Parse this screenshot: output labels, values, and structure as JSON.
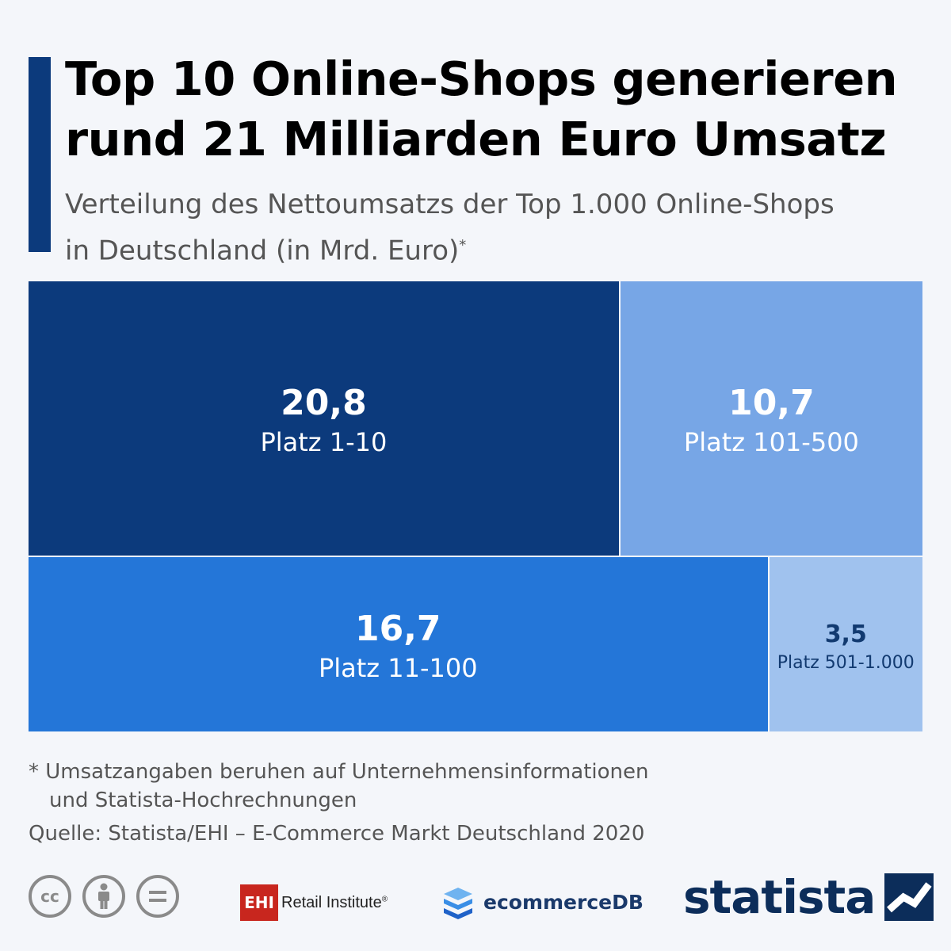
{
  "header": {
    "title_line1": "Top 10 Online-Shops generieren",
    "title_line2": "rund 21 Milliarden Euro Umsatz",
    "subtitle_line1": "Verteilung des Nettoumsatzs der Top 1.000 Online-Shops",
    "subtitle_line2": "in Deutschland (in Mrd. Euro)",
    "subtitle_mark": "*"
  },
  "chart_data": {
    "type": "treemap",
    "title": "Top 10 Online-Shops generieren rund 21 Milliarden Euro Umsatz",
    "unit": "Mrd. Euro",
    "rows": [
      {
        "items": [
          {
            "value": 20.8,
            "value_label": "20,8",
            "label": "Platz 1-10",
            "color": "#0c3a7c",
            "text_color": "#ffffff"
          },
          {
            "value": 10.7,
            "value_label": "10,7",
            "label": "Platz 101-500",
            "color": "#77a6e6",
            "text_color": "#ffffff"
          }
        ]
      },
      {
        "items": [
          {
            "value": 16.7,
            "value_label": "16,7",
            "label": "Platz 11-100",
            "color": "#2476d8",
            "text_color": "#ffffff"
          },
          {
            "value": 3.5,
            "value_label": "3,5",
            "label": "Platz 501-1.000",
            "color": "#a0c2ee",
            "text_color": "#123a70"
          }
        ]
      }
    ]
  },
  "footer": {
    "footnote_line1": "* Umsatzangaben beruhen auf Unternehmensinformationen",
    "footnote_line2": "und Statista-Hochrechnungen",
    "source": "Quelle: Statista/EHI – E-Commerce Markt Deutschland 2020",
    "cc_icons": [
      "cc-icon",
      "by-icon",
      "nd-icon"
    ],
    "cc_label": "cc",
    "ehi_label": "EHI",
    "ehi_text": "Retail Institute",
    "ehi_mark": "®",
    "ecom_label": "ecommerceDB",
    "statista_label": "statista"
  }
}
